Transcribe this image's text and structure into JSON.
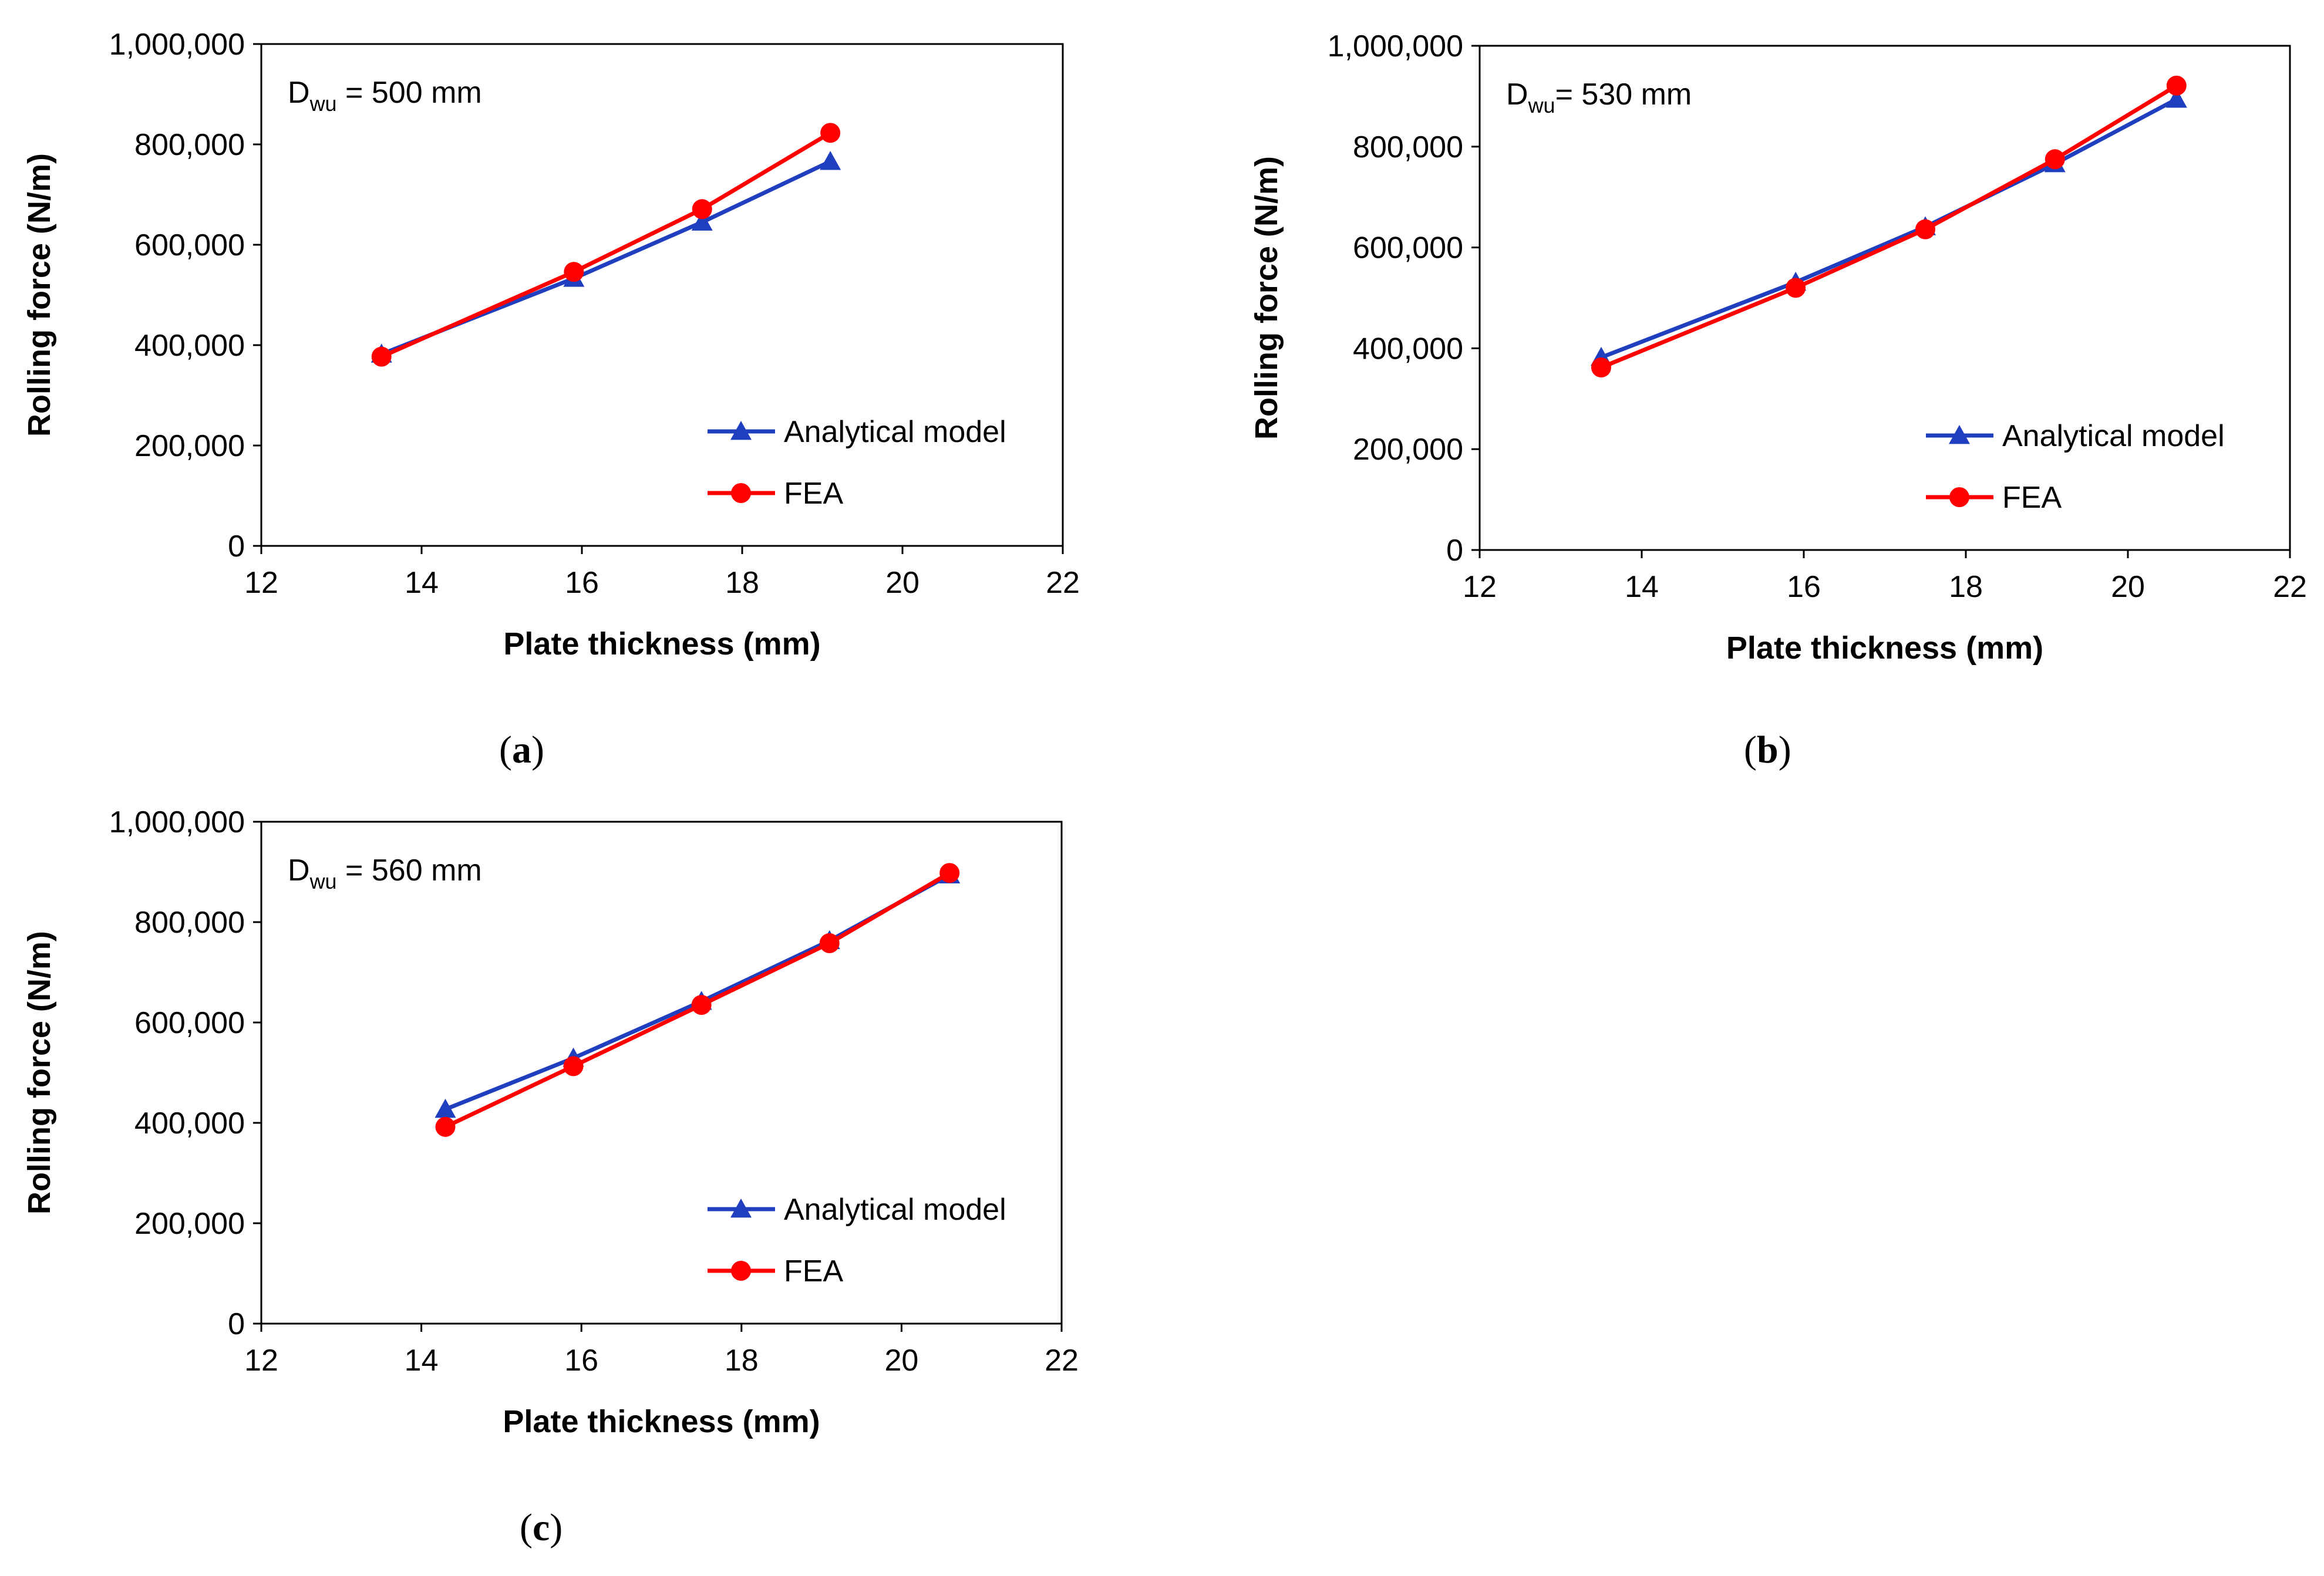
{
  "chart_data": [
    {
      "type": "line",
      "caption_letter": "a",
      "annotation": {
        "prefix": "D",
        "subscript": "wu",
        "suffix": " = 500 mm"
      },
      "xlabel": "Plate thickness (mm)",
      "ylabel": "Rolling force  (N/m)",
      "xlim": [
        12,
        22
      ],
      "ylim": [
        0,
        1000000
      ],
      "x_ticks": [
        "12",
        "14",
        "16",
        "18",
        "20",
        "22"
      ],
      "y_ticks": [
        "0",
        "200,000",
        "400,000",
        "600,000",
        "800,000",
        "1,000,000"
      ],
      "legend_position": "bottom-right",
      "series": [
        {
          "name": "Analytical model",
          "color": "#1f3fbf",
          "marker": "triangle",
          "x": [
            13.5,
            15.9,
            17.5,
            19.1
          ],
          "y": [
            382000,
            533000,
            645000,
            766000
          ]
        },
        {
          "name": "FEA",
          "color": "#ff0000",
          "marker": "circle",
          "x": [
            13.5,
            15.9,
            17.5,
            19.1
          ],
          "y": [
            377000,
            546000,
            671000,
            823000
          ]
        }
      ]
    },
    {
      "type": "line",
      "caption_letter": "b",
      "annotation": {
        "prefix": "D",
        "subscript": "wu",
        "suffix": "= 530 mm"
      },
      "xlabel": "Plate thickness (mm)",
      "ylabel": "Rolling force  (N/m)",
      "xlim": [
        12,
        22
      ],
      "ylim": [
        0,
        1000000
      ],
      "x_ticks": [
        "12",
        "14",
        "16",
        "18",
        "20",
        "22"
      ],
      "y_ticks": [
        "0",
        "200,000",
        "400,000",
        "600,000",
        "800,000",
        "1,000,000"
      ],
      "legend_position": "bottom-right",
      "series": [
        {
          "name": "Analytical model",
          "color": "#1f3fbf",
          "marker": "triangle",
          "x": [
            13.5,
            15.9,
            17.5,
            19.1,
            20.6
          ],
          "y": [
            382000,
            531000,
            641000,
            766000,
            894000
          ]
        },
        {
          "name": "FEA",
          "color": "#ff0000",
          "marker": "circle",
          "x": [
            13.5,
            15.9,
            17.5,
            19.1,
            20.6
          ],
          "y": [
            362000,
            520000,
            636000,
            775000,
            921000
          ]
        }
      ]
    },
    {
      "type": "line",
      "caption_letter": "c",
      "annotation": {
        "prefix": "D",
        "subscript": "wu",
        "suffix": " = 560 mm"
      },
      "xlabel": "Plate thickness (mm)",
      "ylabel": "Rolling force  (N/m)",
      "xlim": [
        12,
        22
      ],
      "ylim": [
        0,
        1000000
      ],
      "x_ticks": [
        "12",
        "14",
        "16",
        "18",
        "20",
        "22"
      ],
      "y_ticks": [
        "0",
        "200,000",
        "400,000",
        "600,000",
        "800,000",
        "1,000,000"
      ],
      "legend_position": "bottom-right",
      "series": [
        {
          "name": "Analytical model",
          "color": "#1f3fbf",
          "marker": "triangle",
          "x": [
            14.3,
            15.9,
            17.5,
            19.1,
            20.6
          ],
          "y": [
            427000,
            529000,
            642000,
            763000,
            894000
          ]
        },
        {
          "name": "FEA",
          "color": "#ff0000",
          "marker": "circle",
          "x": [
            14.3,
            15.9,
            17.5,
            19.1,
            20.6
          ],
          "y": [
            392000,
            513000,
            635000,
            758000,
            898000
          ]
        }
      ]
    }
  ]
}
